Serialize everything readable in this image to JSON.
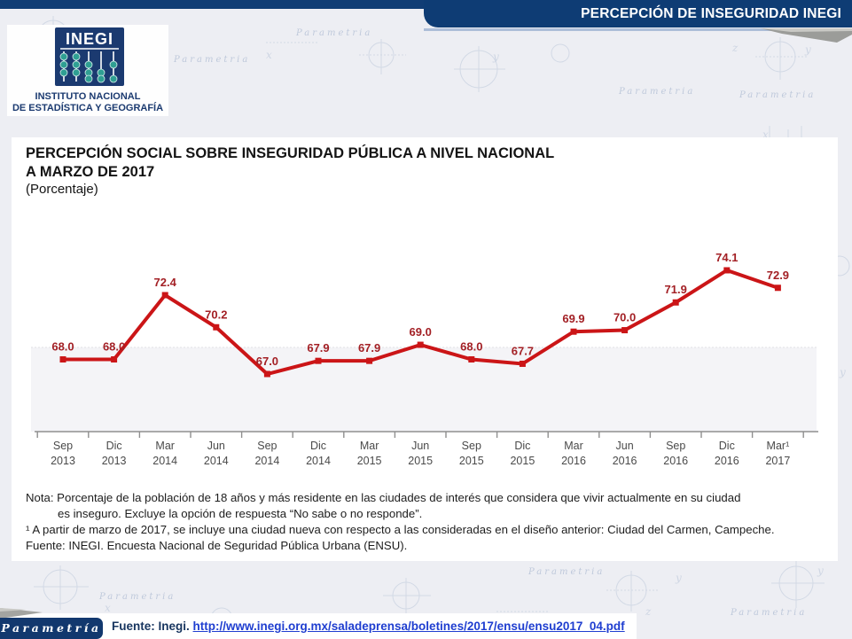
{
  "header": {
    "banner_title": "PERCEPCIÓN DE INSEGURIDAD INEGI",
    "logo": {
      "acronym": "INEGI",
      "name_line1": "INSTITUTO NACIONAL",
      "name_line2": "DE ESTADÍSTICA Y GEOGRAFÍA"
    }
  },
  "chart_panel": {
    "title_line1": "PERCEPCIÓN SOCIAL SOBRE INSEGURIDAD PÚBLICA A NIVEL NACIONAL",
    "title_line2": "A MARZO DE 2017",
    "subtitle": "(Porcentaje)",
    "notes": {
      "line1": "Nota: Porcentaje de la población de 18 años y más residente en las ciudades de interés que considera que vivir actualmente en su ciudad",
      "line2": "es inseguro. Excluye la opción de respuesta “No sabe o no responde”.",
      "line3": "¹ A partir de marzo de 2017, se incluye una ciudad nueva con respecto a las consideradas en el diseño anterior: Ciudad del Carmen, Campeche.",
      "line4": "Fuente: INEGI. Encuesta Nacional de Seguridad Pública Urbana (ENSU)."
    }
  },
  "chart_data": {
    "type": "line",
    "title": "PERCEPCIÓN SOCIAL SOBRE INSEGURIDAD PÚBLICA A NIVEL NACIONAL A MARZO DE 2017",
    "subtitle": "(Porcentaje)",
    "x": [
      [
        "Sep",
        "2013"
      ],
      [
        "Dic",
        "2013"
      ],
      [
        "Mar",
        "2014"
      ],
      [
        "Jun",
        "2014"
      ],
      [
        "Sep",
        "2014"
      ],
      [
        "Dic",
        "2014"
      ],
      [
        "Mar",
        "2015"
      ],
      [
        "Jun",
        "2015"
      ],
      [
        "Sep",
        "2015"
      ],
      [
        "Dic",
        "2015"
      ],
      [
        "Mar",
        "2016"
      ],
      [
        "Jun",
        "2016"
      ],
      [
        "Sep",
        "2016"
      ],
      [
        "Dic",
        "2016"
      ],
      [
        "Mar¹",
        "2017"
      ]
    ],
    "values": [
      68.0,
      68.0,
      72.4,
      70.2,
      67.0,
      67.9,
      67.9,
      69.0,
      68.0,
      67.7,
      69.9,
      70.0,
      71.9,
      74.1,
      72.9
    ],
    "ylim": [
      65,
      76
    ],
    "grid": false,
    "legend": false,
    "data_labels": true,
    "series_color": "#cb1517",
    "label_color": "#a32025",
    "axis_color": "#8f8f8f",
    "tick_label_color": "#4a4a4a"
  },
  "footer": {
    "brand": "Parametría",
    "source_label": "Fuente: Inegi.",
    "source_url": "http://www.inegi.org.mx/saladeprensa/boletines/2017/ensu/ensu2017_04.pdf"
  },
  "watermark": {
    "text": "Parametria"
  },
  "colors": {
    "navy": "#113d75",
    "banner": "#0e3c74",
    "line_red": "#cb1517",
    "link_blue": "#1f3ed0",
    "background": "#edeef3"
  }
}
